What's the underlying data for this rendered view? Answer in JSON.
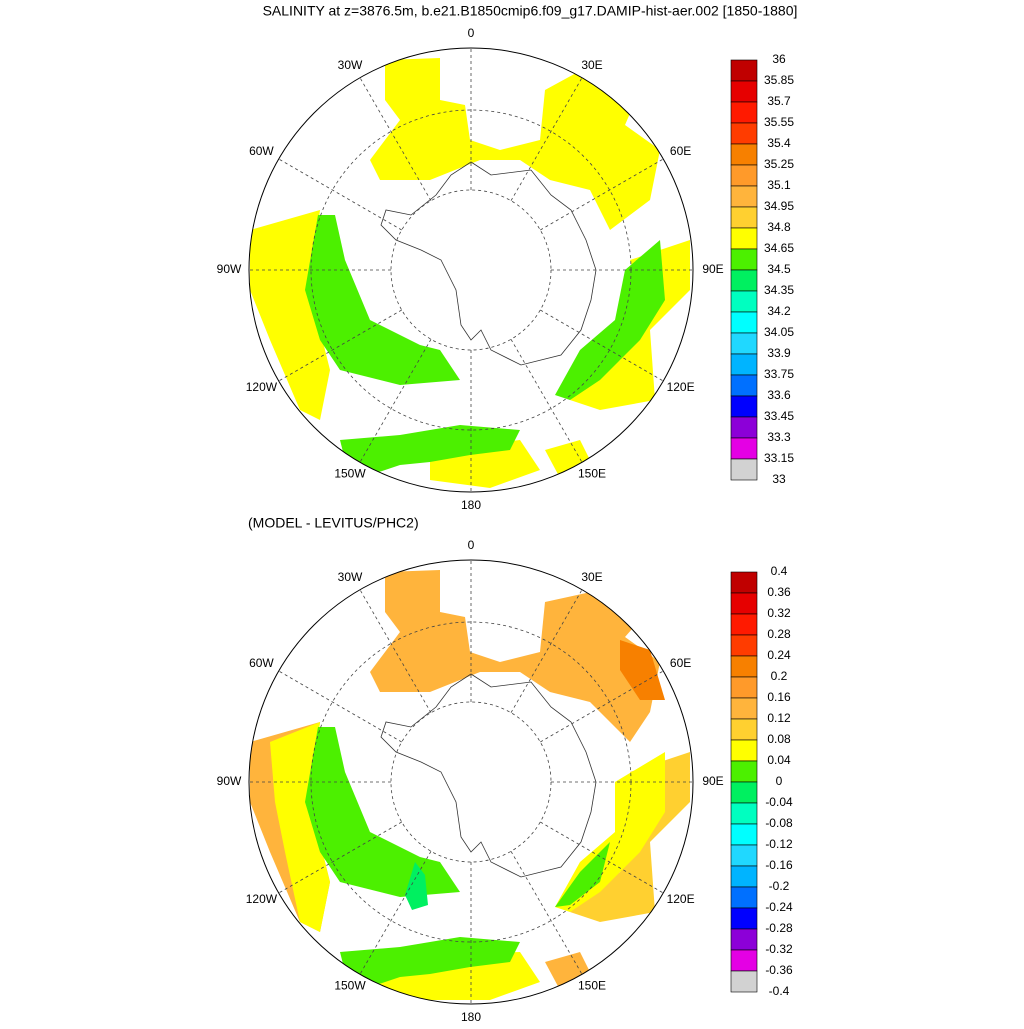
{
  "title": "SALINITY at z=3876.5m, b.e21.B1850cmip6.f09_g17.DAMIP-hist-aer.002 [1850-1880]",
  "lon_labels": [
    "0",
    "30E",
    "60E",
    "90E",
    "120E",
    "150E",
    "180",
    "150W",
    "120W",
    "90W",
    "60W",
    "30W"
  ],
  "palette": [
    "#c00000",
    "#e60000",
    "#ff1a00",
    "#ff3c00",
    "#f78000",
    "#ff9a2a",
    "#ffb43c",
    "#ffd030",
    "#ffff00",
    "#4cf000",
    "#00f060",
    "#00ffc0",
    "#00ffff",
    "#20d8ff",
    "#00b4ff",
    "#0070ff",
    "#0000ff",
    "#8c00d8",
    "#e400e4",
    "#d2d2d2",
    "#707070"
  ],
  "panels": [
    {
      "colorbar_labels": [
        "36",
        "35.85",
        "35.7",
        "35.55",
        "35.4",
        "35.25",
        "35.1",
        "34.95",
        "34.8",
        "34.65",
        "34.5",
        "34.35",
        "34.2",
        "34.05",
        "33.9",
        "33.75",
        "33.6",
        "33.45",
        "33.3",
        "33.15",
        "33"
      ]
    },
    {
      "subtitle": "(MODEL - LEVITUS/PHC2)",
      "colorbar_labels": [
        "0.4",
        "0.36",
        "0.32",
        "0.28",
        "0.24",
        "0.2",
        "0.16",
        "0.12",
        "0.08",
        "0.04",
        "0",
        "-0.04",
        "-0.08",
        "-0.12",
        "-0.16",
        "-0.2",
        "-0.24",
        "-0.28",
        "-0.32",
        "-0.36",
        "-0.4"
      ]
    }
  ]
}
